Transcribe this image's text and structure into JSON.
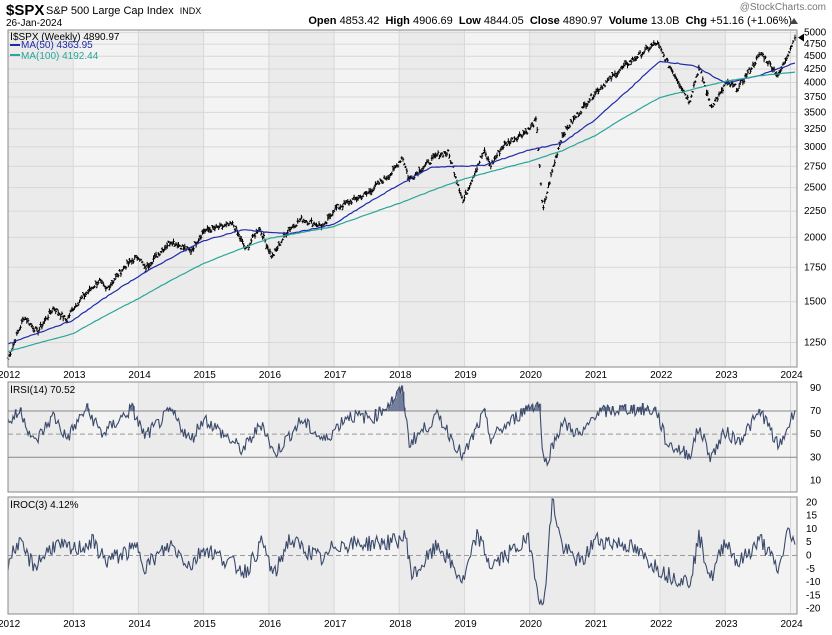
{
  "header": {
    "symbol": "$SPX",
    "name": "S&P 500 Large Cap Index",
    "exchange": "INDX",
    "date": "26-Jan-2024",
    "brand": "@StockCharts.com",
    "open_label": "Open",
    "open": "4853.42",
    "high_label": "High",
    "high": "4906.69",
    "low_label": "Low",
    "low": "4844.05",
    "close_label": "Close",
    "close": "4890.97",
    "volume_label": "Volume",
    "volume": "13.0B",
    "chg_label": "Chg",
    "chg": "+51.16 (+1.06%)"
  },
  "legend": {
    "price": "$SPX (Weekly) 4890.97",
    "ma50": "MA(50) 4363.95",
    "ma100": "MA(100) 4192.44",
    "rsi": "RSI(14) 70.52",
    "roc": "ROC(3) 4.12%"
  },
  "colors": {
    "price": "#000000",
    "ma50": "#1f2aa8",
    "ma100": "#2aa59a",
    "indicator": "#3b4a6b",
    "rsi_fill": "#4a5a80",
    "band_shade": "#ebebeb",
    "grid": "#d8d8d8"
  },
  "chart_data": [
    {
      "type": "line",
      "panel": "price",
      "yscale": "log",
      "ylim": [
        1120,
        5060
      ],
      "xlim": [
        2012.0,
        2024.1
      ],
      "y_ticks": [
        1250,
        1500,
        1750,
        2000,
        2250,
        2500,
        2750,
        3000,
        3250,
        3500,
        3750,
        4000,
        4250,
        4500,
        4750,
        5000
      ],
      "x_ticks": [
        "2012",
        "2013",
        "2014",
        "2015",
        "2016",
        "2017",
        "2018",
        "2019",
        "2020",
        "2021",
        "2022",
        "2023",
        "2024"
      ],
      "series": [
        {
          "name": "$SPX (Weekly)",
          "points": [
            [
              2012.0,
              1160
            ],
            [
              2012.25,
              1400
            ],
            [
              2012.45,
              1310
            ],
            [
              2012.7,
              1460
            ],
            [
              2012.9,
              1380
            ],
            [
              2013.0,
              1460
            ],
            [
              2013.4,
              1650
            ],
            [
              2013.5,
              1580
            ],
            [
              2013.8,
              1760
            ],
            [
              2014.0,
              1840
            ],
            [
              2014.1,
              1740
            ],
            [
              2014.5,
              1970
            ],
            [
              2014.8,
              1880
            ],
            [
              2015.0,
              2060
            ],
            [
              2015.45,
              2120
            ],
            [
              2015.65,
              1890
            ],
            [
              2015.85,
              2090
            ],
            [
              2016.05,
              1830
            ],
            [
              2016.3,
              2070
            ],
            [
              2016.5,
              2170
            ],
            [
              2016.85,
              2100
            ],
            [
              2017.0,
              2270
            ],
            [
              2017.5,
              2430
            ],
            [
              2017.9,
              2680
            ],
            [
              2018.05,
              2870
            ],
            [
              2018.15,
              2590
            ],
            [
              2018.6,
              2900
            ],
            [
              2018.75,
              2920
            ],
            [
              2018.98,
              2350
            ],
            [
              2019.3,
              2940
            ],
            [
              2019.4,
              2760
            ],
            [
              2019.6,
              3020
            ],
            [
              2019.99,
              3240
            ],
            [
              2020.1,
              3380
            ],
            [
              2020.2,
              2240
            ],
            [
              2020.5,
              3160
            ],
            [
              2020.8,
              3550
            ],
            [
              2021.0,
              3820
            ],
            [
              2021.5,
              4350
            ],
            [
              2021.95,
              4780
            ],
            [
              2022.1,
              4400
            ],
            [
              2022.45,
              3670
            ],
            [
              2022.6,
              4280
            ],
            [
              2022.78,
              3590
            ],
            [
              2022.95,
              3840
            ],
            [
              2023.0,
              3990
            ],
            [
              2023.2,
              3900
            ],
            [
              2023.55,
              4560
            ],
            [
              2023.82,
              4120
            ],
            [
              2024.07,
              4890
            ]
          ]
        },
        {
          "name": "MA(50)",
          "points": [
            [
              2012.0,
              1240
            ],
            [
              2013.0,
              1380
            ],
            [
              2014.0,
              1680
            ],
            [
              2015.0,
              1970
            ],
            [
              2015.6,
              2070
            ],
            [
              2016.3,
              2030
            ],
            [
              2017.0,
              2120
            ],
            [
              2018.0,
              2530
            ],
            [
              2018.5,
              2740
            ],
            [
              2019.3,
              2760
            ],
            [
              2020.0,
              2960
            ],
            [
              2020.5,
              3050
            ],
            [
              2021.0,
              3380
            ],
            [
              2021.5,
              3850
            ],
            [
              2022.0,
              4400
            ],
            [
              2022.5,
              4320
            ],
            [
              2023.0,
              3990
            ],
            [
              2023.5,
              4120
            ],
            [
              2024.07,
              4364
            ]
          ]
        },
        {
          "name": "MA(100)",
          "points": [
            [
              2012.0,
              1200
            ],
            [
              2013.0,
              1300
            ],
            [
              2014.0,
              1520
            ],
            [
              2015.0,
              1780
            ],
            [
              2016.0,
              1990
            ],
            [
              2017.0,
              2100
            ],
            [
              2018.0,
              2330
            ],
            [
              2019.0,
              2600
            ],
            [
              2020.0,
              2810
            ],
            [
              2020.5,
              2950
            ],
            [
              2021.0,
              3150
            ],
            [
              2022.0,
              3740
            ],
            [
              2023.0,
              4020
            ],
            [
              2023.5,
              4120
            ],
            [
              2024.07,
              4192
            ]
          ]
        }
      ]
    },
    {
      "type": "line",
      "panel": "RSI(14)",
      "ylim": [
        0,
        95
      ],
      "y_ticks": [
        10,
        30,
        50,
        70,
        90
      ],
      "xlim": [
        2012.0,
        2024.1
      ],
      "series": [
        {
          "name": "RSI(14)",
          "points": [
            [
              2012.0,
              60
            ],
            [
              2012.2,
              70
            ],
            [
              2012.4,
              42
            ],
            [
              2012.7,
              66
            ],
            [
              2012.9,
              46
            ],
            [
              2013.2,
              72
            ],
            [
              2013.45,
              50
            ],
            [
              2013.9,
              72
            ],
            [
              2014.1,
              48
            ],
            [
              2014.5,
              70
            ],
            [
              2014.8,
              44
            ],
            [
              2015.0,
              64
            ],
            [
              2015.6,
              36
            ],
            [
              2015.9,
              60
            ],
            [
              2016.08,
              32
            ],
            [
              2016.5,
              62
            ],
            [
              2016.85,
              44
            ],
            [
              2017.2,
              66
            ],
            [
              2017.6,
              64
            ],
            [
              2017.95,
              82
            ],
            [
              2018.05,
              90
            ],
            [
              2018.15,
              42
            ],
            [
              2018.6,
              66
            ],
            [
              2018.98,
              30
            ],
            [
              2019.3,
              68
            ],
            [
              2019.4,
              46
            ],
            [
              2019.99,
              74
            ],
            [
              2020.15,
              76
            ],
            [
              2020.22,
              22
            ],
            [
              2020.5,
              60
            ],
            [
              2020.8,
              48
            ],
            [
              2021.0,
              68
            ],
            [
              2021.5,
              72
            ],
            [
              2021.95,
              70
            ],
            [
              2022.1,
              42
            ],
            [
              2022.45,
              32
            ],
            [
              2022.6,
              56
            ],
            [
              2022.78,
              30
            ],
            [
              2023.0,
              52
            ],
            [
              2023.2,
              44
            ],
            [
              2023.55,
              70
            ],
            [
              2023.82,
              38
            ],
            [
              2024.07,
              70.5
            ]
          ]
        }
      ]
    },
    {
      "type": "line",
      "panel": "ROC(3)",
      "ylim": [
        -22,
        22
      ],
      "y_ticks": [
        -20,
        -15,
        -10,
        -5,
        0,
        5,
        10,
        15,
        20
      ],
      "xlim": [
        2012.0,
        2024.1
      ],
      "series": [
        {
          "name": "ROC(3)",
          "points": [
            [
              2012.0,
              -3
            ],
            [
              2012.15,
              5
            ],
            [
              2012.4,
              -4
            ],
            [
              2012.7,
              4
            ],
            [
              2013.0,
              2
            ],
            [
              2013.3,
              5
            ],
            [
              2013.5,
              -2
            ],
            [
              2014.0,
              3
            ],
            [
              2014.1,
              -4
            ],
            [
              2014.5,
              4
            ],
            [
              2014.8,
              -4
            ],
            [
              2015.0,
              3
            ],
            [
              2015.65,
              -6
            ],
            [
              2015.9,
              5
            ],
            [
              2016.08,
              -8
            ],
            [
              2016.3,
              6
            ],
            [
              2016.85,
              -2
            ],
            [
              2017.0,
              4
            ],
            [
              2017.9,
              5
            ],
            [
              2018.1,
              7
            ],
            [
              2018.2,
              -8
            ],
            [
              2018.6,
              4
            ],
            [
              2018.98,
              -10
            ],
            [
              2019.2,
              8
            ],
            [
              2019.4,
              -4
            ],
            [
              2019.99,
              6
            ],
            [
              2020.2,
              -22
            ],
            [
              2020.35,
              21
            ],
            [
              2020.5,
              3
            ],
            [
              2020.8,
              -3
            ],
            [
              2021.0,
              6
            ],
            [
              2021.5,
              4
            ],
            [
              2022.1,
              -7
            ],
            [
              2022.45,
              -10
            ],
            [
              2022.6,
              7
            ],
            [
              2022.78,
              -9
            ],
            [
              2023.0,
              6
            ],
            [
              2023.2,
              -3
            ],
            [
              2023.55,
              6
            ],
            [
              2023.82,
              -6
            ],
            [
              2023.95,
              9
            ],
            [
              2024.07,
              4.1
            ]
          ]
        }
      ]
    }
  ]
}
